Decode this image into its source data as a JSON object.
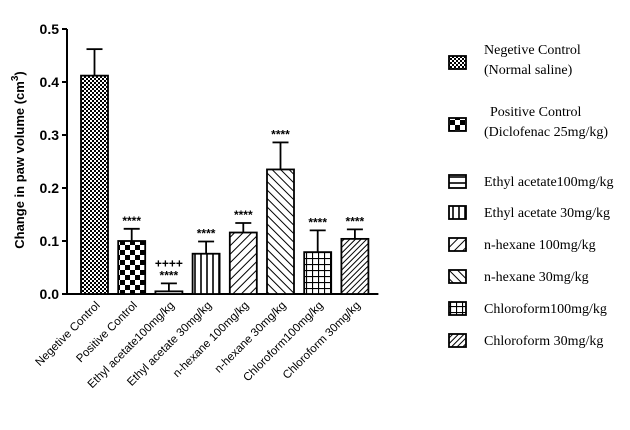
{
  "chart_data": {
    "type": "bar",
    "ylabel": "Change in paw volume (cm",
    "ylabel_sup": "3",
    "ylabel_end": ")",
    "ylim": [
      0,
      0.5
    ],
    "yticks": [
      "0.0",
      "0.1",
      "0.2",
      "0.3",
      "0.4",
      "0.5"
    ],
    "categories": [
      "Negetive Control",
      "Positive Control",
      "Ethyl acetate100mg/kg",
      "Ethyl acetate 30mg/kg",
      "n-hexane 100mg/kg",
      "n-hexane 30mg/kg",
      "Chloroform100mg/kg",
      "Chloroform 30mg/kg"
    ],
    "values": [
      0.412,
      0.1,
      0.005,
      0.076,
      0.116,
      0.235,
      0.079,
      0.104
    ],
    "errors": [
      0.05,
      0.023,
      0.015,
      0.023,
      0.018,
      0.051,
      0.041,
      0.018
    ],
    "annotations": [
      [],
      [
        "****"
      ],
      [
        "++++",
        "****"
      ],
      [
        "****"
      ],
      [
        "****"
      ],
      [
        "****"
      ],
      [
        "****"
      ],
      [
        "****"
      ]
    ],
    "patterns": [
      "checker-small",
      "checker-large",
      "horizontal",
      "vertical",
      "diag-right",
      "diag-left",
      "grid",
      "diag-dense"
    ],
    "legend": [
      [
        "Negetive Control",
        "(Normal saline)"
      ],
      [
        "Positive Control",
        "(Diclofenac 25mg/kg)"
      ],
      [
        "Ethyl acetate100mg/kg"
      ],
      [
        "Ethyl acetate 30mg/kg"
      ],
      [
        "n-hexane 100mg/kg"
      ],
      [
        "n-hexane 30mg/kg"
      ],
      [
        "Chloroform100mg/kg"
      ],
      [
        "Chloroform 30mg/kg"
      ]
    ],
    "legend_position": "right",
    "grid": false,
    "bar_color": "#000000"
  }
}
